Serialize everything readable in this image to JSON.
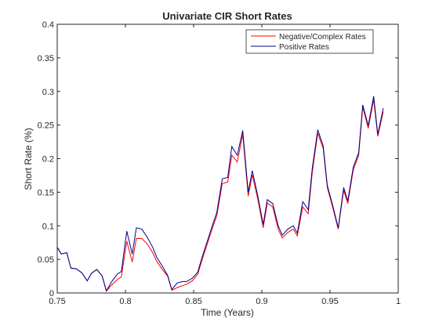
{
  "chart_data": {
    "type": "line",
    "title": "Univariate CIR Short Rates",
    "xlabel": "Time (Years)",
    "ylabel": "Short Rate (%)",
    "xlim": [
      0.75,
      1.0
    ],
    "ylim": [
      0,
      0.4
    ],
    "x_ticks": [
      0.75,
      0.8,
      0.85,
      0.9,
      0.95,
      1.0
    ],
    "x_tick_labels": [
      "0.75",
      "0.8",
      "0.85",
      "0.9",
      "0.95",
      "1"
    ],
    "y_ticks": [
      0,
      0.05,
      0.1,
      0.15,
      0.2,
      0.25,
      0.3,
      0.35,
      0.4
    ],
    "y_tick_labels": [
      "0",
      "0.05",
      "0.1",
      "0.15",
      "0.2",
      "0.25",
      "0.3",
      "0.35",
      "0.4"
    ],
    "grid": false,
    "legend_position": "top-right",
    "series": [
      {
        "name": "Negative/Complex Rates",
        "color": "#ff0000",
        "points": [
          [
            0.75,
            0.068
          ],
          [
            0.753,
            0.058
          ],
          [
            0.757,
            0.06
          ],
          [
            0.76,
            0.037
          ],
          [
            0.764,
            0.036
          ],
          [
            0.768,
            0.03
          ],
          [
            0.772,
            0.018
          ],
          [
            0.775,
            0.029
          ],
          [
            0.779,
            0.035
          ],
          [
            0.783,
            0.025
          ],
          [
            0.786,
            0.003
          ],
          [
            0.79,
            0.012
          ],
          [
            0.794,
            0.02
          ],
          [
            0.797,
            0.024
          ],
          [
            0.801,
            0.077
          ],
          [
            0.805,
            0.046
          ],
          [
            0.808,
            0.081
          ],
          [
            0.812,
            0.081
          ],
          [
            0.816,
            0.073
          ],
          [
            0.82,
            0.06
          ],
          [
            0.823,
            0.047
          ],
          [
            0.827,
            0.035
          ],
          [
            0.831,
            0.025
          ],
          [
            0.834,
            0.004
          ],
          [
            0.838,
            0.008
          ],
          [
            0.842,
            0.011
          ],
          [
            0.845,
            0.013
          ],
          [
            0.849,
            0.018
          ],
          [
            0.853,
            0.028
          ],
          [
            0.856,
            0.048
          ],
          [
            0.86,
            0.073
          ],
          [
            0.864,
            0.098
          ],
          [
            0.867,
            0.115
          ],
          [
            0.871,
            0.163
          ],
          [
            0.875,
            0.165
          ],
          [
            0.878,
            0.205
          ],
          [
            0.882,
            0.195
          ],
          [
            0.886,
            0.236
          ],
          [
            0.89,
            0.144
          ],
          [
            0.893,
            0.176
          ],
          [
            0.897,
            0.14
          ],
          [
            0.901,
            0.097
          ],
          [
            0.904,
            0.134
          ],
          [
            0.908,
            0.128
          ],
          [
            0.912,
            0.095
          ],
          [
            0.915,
            0.082
          ],
          [
            0.919,
            0.09
          ],
          [
            0.923,
            0.095
          ],
          [
            0.926,
            0.085
          ],
          [
            0.93,
            0.128
          ],
          [
            0.934,
            0.118
          ],
          [
            0.937,
            0.18
          ],
          [
            0.941,
            0.238
          ],
          [
            0.945,
            0.215
          ],
          [
            0.948,
            0.157
          ],
          [
            0.952,
            0.127
          ],
          [
            0.956,
            0.095
          ],
          [
            0.96,
            0.153
          ],
          [
            0.963,
            0.133
          ],
          [
            0.967,
            0.183
          ],
          [
            0.971,
            0.205
          ],
          [
            0.974,
            0.277
          ],
          [
            0.978,
            0.245
          ],
          [
            0.982,
            0.288
          ],
          [
            0.985,
            0.233
          ],
          [
            0.989,
            0.27
          ]
        ]
      },
      {
        "name": "Positive Rates",
        "color": "#00008b",
        "points": [
          [
            0.75,
            0.068
          ],
          [
            0.753,
            0.058
          ],
          [
            0.757,
            0.06
          ],
          [
            0.76,
            0.037
          ],
          [
            0.764,
            0.036
          ],
          [
            0.768,
            0.03
          ],
          [
            0.772,
            0.018
          ],
          [
            0.775,
            0.029
          ],
          [
            0.779,
            0.035
          ],
          [
            0.783,
            0.025
          ],
          [
            0.786,
            0.003
          ],
          [
            0.79,
            0.017
          ],
          [
            0.794,
            0.028
          ],
          [
            0.797,
            0.032
          ],
          [
            0.801,
            0.092
          ],
          [
            0.805,
            0.058
          ],
          [
            0.808,
            0.097
          ],
          [
            0.812,
            0.095
          ],
          [
            0.816,
            0.083
          ],
          [
            0.82,
            0.068
          ],
          [
            0.823,
            0.053
          ],
          [
            0.827,
            0.04
          ],
          [
            0.831,
            0.026
          ],
          [
            0.834,
            0.005
          ],
          [
            0.838,
            0.015
          ],
          [
            0.842,
            0.017
          ],
          [
            0.845,
            0.017
          ],
          [
            0.849,
            0.022
          ],
          [
            0.853,
            0.031
          ],
          [
            0.856,
            0.052
          ],
          [
            0.86,
            0.077
          ],
          [
            0.864,
            0.102
          ],
          [
            0.867,
            0.12
          ],
          [
            0.871,
            0.17
          ],
          [
            0.875,
            0.172
          ],
          [
            0.878,
            0.218
          ],
          [
            0.882,
            0.205
          ],
          [
            0.886,
            0.242
          ],
          [
            0.89,
            0.15
          ],
          [
            0.893,
            0.182
          ],
          [
            0.897,
            0.145
          ],
          [
            0.901,
            0.102
          ],
          [
            0.904,
            0.139
          ],
          [
            0.908,
            0.133
          ],
          [
            0.912,
            0.1
          ],
          [
            0.915,
            0.086
          ],
          [
            0.919,
            0.095
          ],
          [
            0.923,
            0.1
          ],
          [
            0.926,
            0.089
          ],
          [
            0.93,
            0.136
          ],
          [
            0.934,
            0.124
          ],
          [
            0.937,
            0.186
          ],
          [
            0.941,
            0.243
          ],
          [
            0.945,
            0.219
          ],
          [
            0.948,
            0.16
          ],
          [
            0.952,
            0.13
          ],
          [
            0.956,
            0.097
          ],
          [
            0.96,
            0.157
          ],
          [
            0.963,
            0.137
          ],
          [
            0.967,
            0.187
          ],
          [
            0.971,
            0.209
          ],
          [
            0.974,
            0.28
          ],
          [
            0.978,
            0.249
          ],
          [
            0.982,
            0.293
          ],
          [
            0.985,
            0.236
          ],
          [
            0.989,
            0.275
          ]
        ]
      }
    ]
  }
}
